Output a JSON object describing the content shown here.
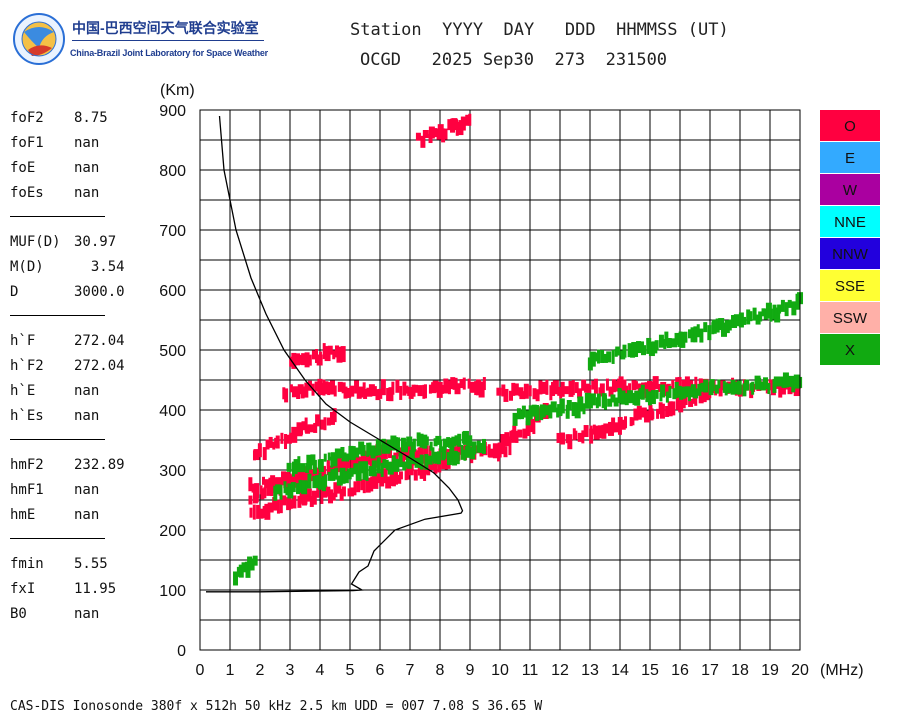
{
  "logo": {
    "cn": "中国-巴西空间天气联合实验室",
    "en": "China-Brazil Joint Laboratory for Space Weather"
  },
  "header": {
    "line1": "Station  YYYY  DAY   DDD  HHMMSS (UT)",
    "line2": "OCGD   2025 Sep30  273  231500"
  },
  "params": [
    {
      "name": "foF2",
      "value": "8.75"
    },
    {
      "name": "foF1",
      "value": "nan"
    },
    {
      "name": "foE",
      "value": "nan"
    },
    {
      "name": "foEs",
      "value": "nan"
    },
    {
      "name": "MUF(D)",
      "value": "30.97"
    },
    {
      "name": "M(D)",
      "value": "  3.54"
    },
    {
      "name": "D",
      "value": "3000.0"
    },
    {
      "name": "h`F",
      "value": "272.04"
    },
    {
      "name": "h`F2",
      "value": "272.04"
    },
    {
      "name": "h`E",
      "value": "nan"
    },
    {
      "name": "h`Es",
      "value": "nan"
    },
    {
      "name": "hmF2",
      "value": "232.89"
    },
    {
      "name": "hmF1",
      "value": "nan"
    },
    {
      "name": "hmE",
      "value": "nan"
    },
    {
      "name": "fmin",
      "value": "5.55"
    },
    {
      "name": "fxI",
      "value": "11.95"
    },
    {
      "name": "B0",
      "value": "nan"
    }
  ],
  "footer": "CAS-DIS Ionosonde 380f x 512h 50 kHz 2.5 km UDD = 007 7.08 S 36.65 W",
  "legend": [
    {
      "label": "O",
      "color": "#ff0040"
    },
    {
      "label": "E",
      "color": "#33aaff"
    },
    {
      "label": "W",
      "color": "#aa00a0"
    },
    {
      "label": "NNE",
      "color": "#00ffff"
    },
    {
      "label": "NNW",
      "color": "#2200dd"
    },
    {
      "label": "SSE",
      "color": "#ffff33"
    },
    {
      "label": "SSW",
      "color": "#ffb0a8"
    },
    {
      "label": "X",
      "color": "#11aa11"
    }
  ],
  "chart_data": {
    "type": "scatter",
    "xlabel": "(MHz)",
    "ylabel": "(Km)",
    "xlim": [
      0,
      20
    ],
    "ylim": [
      0,
      900
    ],
    "xticks": [
      "0",
      "1",
      "2",
      "3",
      "4",
      "5",
      "6",
      "7",
      "8",
      "9",
      "10",
      "11",
      "12",
      "13",
      "14",
      "15",
      "16",
      "17",
      "18",
      "19",
      "20"
    ],
    "yticks": [
      "0",
      "100",
      "200",
      "300",
      "400",
      "500",
      "600",
      "700",
      "800",
      "900"
    ],
    "grid": true,
    "legend_position": "right",
    "series": [
      {
        "name": "O",
        "color": "#ff0040",
        "traces": [
          {
            "x": [
              1.7,
              2.5,
              3.5,
              4.5,
              5.5,
              6.5,
              7.5,
              8.3
            ],
            "y": [
              228,
              240,
              252,
              262,
              275,
              288,
              300,
              312
            ]
          },
          {
            "x": [
              1.7,
              2.5,
              3.5,
              4.5,
              5.5,
              6.3
            ],
            "y": [
              252,
              268,
              288,
              305,
              320,
              335
            ]
          },
          {
            "x": [
              1.7,
              3.0,
              4.5,
              6.0,
              7.5
            ],
            "y": [
              270,
              285,
              305,
              320,
              330
            ]
          },
          {
            "x": [
              7.0,
              8.5,
              9.5,
              10.3
            ],
            "y": [
              320,
              325,
              330,
              335
            ]
          },
          {
            "x": [
              10.0,
              10.5,
              11.0,
              11.5
            ],
            "y": [
              340,
              355,
              375,
              395
            ]
          },
          {
            "x": [
              12.0,
              13.0,
              14.0,
              15.0,
              16.0,
              17.0
            ],
            "y": [
              350,
              362,
              378,
              395,
              412,
              425
            ]
          },
          {
            "x": [
              1.8,
              2.5,
              3.5,
              4.5
            ],
            "y": [
              320,
              345,
              370,
              385
            ]
          },
          {
            "x": [
              2.8,
              4.0,
              5.5,
              7.0,
              8.5,
              9.5
            ],
            "y": [
              430,
              440,
              430,
              435,
              440,
              440
            ]
          },
          {
            "x": [
              10.0,
              12.0,
              14.0,
              16.0,
              18.0,
              20.0
            ],
            "y": [
              430,
              432,
              438,
              440,
              438,
              440
            ]
          },
          {
            "x": [
              3.0,
              4.0,
              4.8
            ],
            "y": [
              480,
              490,
              500
            ]
          },
          {
            "x": [
              7.3,
              8.0,
              8.5,
              9.0
            ],
            "y": [
              850,
              860,
              875,
              878
            ]
          }
        ]
      },
      {
        "name": "X",
        "color": "#11aa11",
        "traces": [
          {
            "x": [
              1.2,
              1.6,
              1.8
            ],
            "y": [
              120,
              135,
              150
            ]
          },
          {
            "x": [
              2.5,
              4.0,
              5.5,
              7.0,
              8.5,
              9.5
            ],
            "y": [
              260,
              280,
              300,
              315,
              325,
              335
            ]
          },
          {
            "x": [
              3.0,
              4.5,
              6.0,
              7.5,
              9.0
            ],
            "y": [
              300,
              320,
              338,
              345,
              350
            ]
          },
          {
            "x": [
              10.5,
              12.0,
              14.0,
              16.0,
              18.0,
              20.0
            ],
            "y": [
              390,
              400,
              420,
              430,
              440,
              445
            ]
          },
          {
            "x": [
              13.0,
              14.5,
              16.0,
              17.5,
              19.0,
              20.0
            ],
            "y": [
              480,
              500,
              520,
              540,
              560,
              580
            ]
          }
        ]
      }
    ],
    "height_profile": {
      "name": "profile",
      "color": "#000000",
      "x": [
        0.65,
        0.8,
        1.2,
        1.7,
        2.2,
        2.8,
        3.5,
        4.2,
        5.0,
        6.0,
        7.0,
        7.8,
        8.3,
        8.6,
        8.75,
        8.7,
        7.5,
        6.5,
        5.8,
        5.6,
        5.3,
        5.05,
        5.4,
        5.1,
        3.5,
        2.0,
        0.2
      ],
      "y": [
        890,
        800,
        700,
        620,
        560,
        500,
        450,
        410,
        380,
        350,
        320,
        295,
        270,
        250,
        232,
        228,
        218,
        200,
        165,
        140,
        130,
        110,
        100,
        99,
        98,
        97,
        97
      ]
    }
  }
}
